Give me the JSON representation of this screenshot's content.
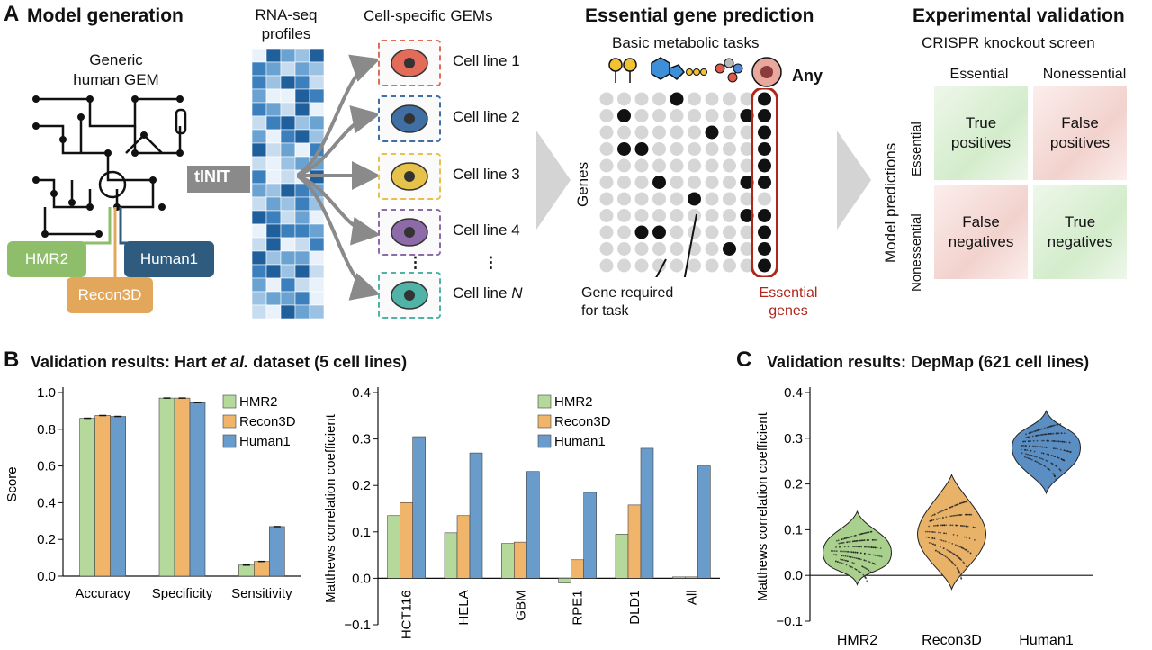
{
  "panelA": {
    "label": "A",
    "model_generation": {
      "title": "Model generation",
      "generic_gem": "Generic\nhuman GEM",
      "tinit": "tINIT",
      "tags": {
        "hmr2": "HMR2",
        "recon3d": "Recon3D",
        "human1": "Human1"
      },
      "colors": {
        "hmr2": "#8fbe6a",
        "recon3d": "#e3a75b",
        "human1": "#2f5b7f"
      }
    },
    "rnaseq": {
      "title": "RNA-seq\nprofiles"
    },
    "cell_gems": {
      "title": "Cell-specific GEMs",
      "lines": [
        "Cell line 1",
        "Cell line 2",
        "Cell line 3",
        "Cell line 4",
        "Cell line "
      ],
      "n_symbol": "N",
      "dots": "⋮",
      "colors": [
        "#e26b5a",
        "#3f6fa3",
        "#e6c24a",
        "#8d6aa8",
        "#4fb3a8"
      ]
    },
    "essential_prediction": {
      "title": "Essential gene prediction",
      "subtitle": "Basic metabolic tasks",
      "any": "Any",
      "genes_axis": "Genes",
      "gene_required": "Gene required\nfor task",
      "essential_genes": "Essential\ngenes",
      "accent": "#b0261c"
    },
    "experimental_validation": {
      "title": "Experimental validation",
      "subtitle": "CRISPR knockout screen",
      "col_essential": "Essential",
      "col_nonessential": "Nonessential",
      "row_axis": "Model predictions",
      "row_essential": "Essential",
      "row_nonessential": "Nonessential",
      "tp": "True\npositives",
      "fp": "False\npositives",
      "fn": "False\nnegatives",
      "tn": "True\nnegatives",
      "green": "#d6eccd",
      "red": "#f2d4d0"
    }
  },
  "panelB": {
    "label": "B",
    "title_pre": "Validation results: Hart ",
    "title_em": "et al.",
    "title_post": " dataset (5 cell lines)"
  },
  "panelC": {
    "label": "C",
    "title": "Validation results: DepMap (621 cell lines)"
  },
  "chart_data": [
    {
      "type": "bar",
      "categories": [
        "Accuracy",
        "Specificity",
        "Sensitivity"
      ],
      "series": [
        {
          "name": "HMR2",
          "values": [
            0.86,
            0.97,
            0.06
          ],
          "color": "#b5d99a"
        },
        {
          "name": "Recon3D",
          "values": [
            0.875,
            0.97,
            0.08
          ],
          "color": "#f0b56a"
        },
        {
          "name": "Human1",
          "values": [
            0.87,
            0.945,
            0.27
          ],
          "color": "#6a9ccb"
        }
      ],
      "ylabel": "Score",
      "ylim": [
        0,
        1.0
      ],
      "yticks": [
        "0.0",
        "0.2",
        "0.4",
        "0.6",
        "0.8",
        "1.0"
      ],
      "legend": "top-right"
    },
    {
      "type": "bar",
      "categories": [
        "HCT116",
        "HELA",
        "GBM",
        "RPE1",
        "DLD1",
        "All"
      ],
      "series": [
        {
          "name": "HMR2",
          "values": [
            0.135,
            0.098,
            0.075,
            -0.01,
            0.095,
            0.003
          ],
          "color": "#b5d99a"
        },
        {
          "name": "Recon3D",
          "values": [
            0.163,
            0.135,
            0.078,
            0.04,
            0.158,
            0.003
          ],
          "color": "#f0b56a"
        },
        {
          "name": "Human1",
          "values": [
            0.305,
            0.27,
            0.23,
            0.185,
            0.28,
            0.242
          ],
          "color": "#6a9ccb"
        }
      ],
      "ylabel": "Matthews correlation coefficient",
      "ylim": [
        -0.1,
        0.4
      ],
      "yticks": [
        "−0.1",
        "0.0",
        "0.1",
        "0.2",
        "0.3",
        "0.4"
      ],
      "legend": "top-right"
    },
    {
      "type": "violin",
      "categories": [
        "HMR2",
        "Recon3D",
        "Human1"
      ],
      "series": [
        {
          "name": "HMR2",
          "median": 0.05,
          "range": [
            -0.02,
            0.14
          ],
          "color": "#a9d08c"
        },
        {
          "name": "Recon3D",
          "median": 0.09,
          "range": [
            -0.03,
            0.22
          ],
          "color": "#e8b268"
        },
        {
          "name": "Human1",
          "median": 0.28,
          "range": [
            0.18,
            0.36
          ],
          "color": "#5b8fc3"
        }
      ],
      "ylabel": "Matthews correlation coefficient",
      "ylim": [
        -0.1,
        0.4
      ],
      "yticks": [
        "−0.1",
        "0.0",
        "0.1",
        "0.2",
        "0.3",
        "0.4"
      ]
    }
  ]
}
